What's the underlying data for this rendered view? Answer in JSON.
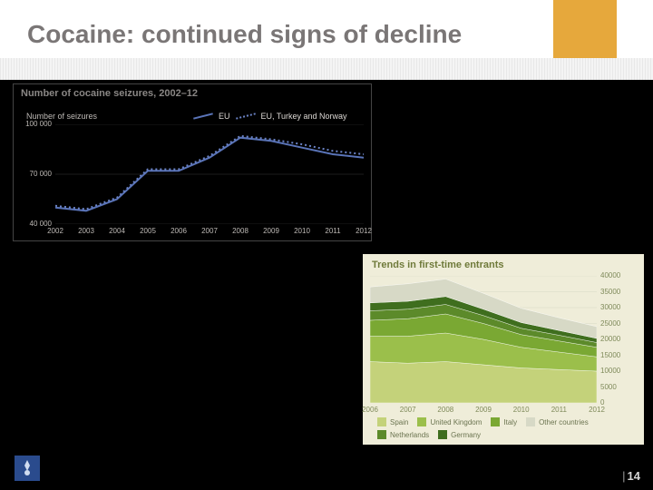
{
  "slide": {
    "title": "Cocaine: continued signs of decline",
    "page_number": "14",
    "accent_color": "#e6a83c",
    "title_color": "#7a7676",
    "title_fontsize": 28
  },
  "chart1": {
    "type": "line",
    "title": "Number of cocaine seizures, 2002–12",
    "subtitle": "Number of seizures",
    "background_color": "#000000",
    "text_color": "#bdb9b5",
    "series": [
      {
        "name": "EU",
        "style": "solid",
        "color": "#5a74b8"
      },
      {
        "name": "EU, Turkey and Norway",
        "style": "dotted",
        "color": "#6a82c4"
      }
    ],
    "x": [
      "2002",
      "2003",
      "2004",
      "2005",
      "2006",
      "2007",
      "2008",
      "2009",
      "2010",
      "2011",
      "2012"
    ],
    "ylim": [
      40000,
      100000
    ],
    "yticks": [
      40000,
      70000,
      100000
    ],
    "ytick_labels": [
      "40 000",
      "70 000",
      "100 000"
    ],
    "values_eu": [
      50000,
      48000,
      55000,
      72000,
      72000,
      80000,
      92000,
      90000,
      86000,
      82000,
      80000
    ],
    "values_etn": [
      51000,
      49000,
      56000,
      73000,
      73000,
      81000,
      93000,
      91000,
      88000,
      84000,
      82000
    ],
    "line_width": 2,
    "title_fontsize": 11,
    "label_fontsize": 8
  },
  "chart2": {
    "type": "area-stacked",
    "title": "Trends in first-time entrants",
    "background_color": "#efedd9",
    "text_color": "#7f8a5a",
    "title_color": "#6f7a3a",
    "x": [
      "2006",
      "2007",
      "2008",
      "2009",
      "2010",
      "2011",
      "2012"
    ],
    "ylim": [
      0,
      40000
    ],
    "ytick_step": 5000,
    "yticks": [
      0,
      5000,
      10000,
      15000,
      20000,
      25000,
      30000,
      35000,
      40000
    ],
    "legend": [
      {
        "label": "Spain",
        "color": "#c4d27a"
      },
      {
        "label": "United Kingdom",
        "color": "#9bbf4b"
      },
      {
        "label": "Italy",
        "color": "#7aa833"
      },
      {
        "label": "Other countries",
        "color": "#d7d9c6"
      },
      {
        "label": "Netherlands",
        "color": "#5c8a2a"
      },
      {
        "label": "Germany",
        "color": "#3f6e1e"
      }
    ],
    "stacks": {
      "spain": [
        13000,
        12500,
        13000,
        12000,
        11000,
        10500,
        10000
      ],
      "united_kingdom": [
        8000,
        8500,
        9000,
        8000,
        6500,
        5500,
        4500
      ],
      "italy": [
        5000,
        5500,
        6000,
        5000,
        4000,
        3500,
        3000
      ],
      "netherlands": [
        3000,
        3000,
        3000,
        2500,
        2000,
        1800,
        1500
      ],
      "germany": [
        2500,
        2500,
        2500,
        2000,
        1800,
        1500,
        1300
      ],
      "other": [
        5000,
        5500,
        5500,
        5000,
        4500,
        4000,
        3700
      ]
    },
    "order_bottom_to_top": [
      "spain",
      "united_kingdom",
      "italy",
      "netherlands",
      "germany",
      "other"
    ],
    "colors": {
      "spain": "#c4d27a",
      "united_kingdom": "#9bbf4b",
      "italy": "#7aa833",
      "netherlands": "#5c8a2a",
      "germany": "#3f6e1e",
      "other": "#d7d9c6"
    },
    "grid_color": "#d7d9c6",
    "title_fontsize": 11,
    "label_fontsize": 8
  }
}
